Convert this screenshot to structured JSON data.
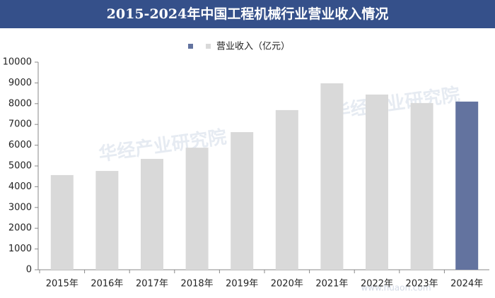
{
  "chart_data": {
    "type": "bar",
    "title": "2015-2024年中国工程机械行业营业收入情况",
    "categories": [
      "2015年",
      "2016年",
      "2017年",
      "2018年",
      "2019年",
      "2020年",
      "2021年",
      "2022年",
      "2023年",
      "2024年"
    ],
    "series": [
      {
        "name": "营业收入（亿元）",
        "values": [
          4560,
          4760,
          5340,
          5880,
          6630,
          7690,
          8980,
          8440,
          8030,
          8100
        ],
        "colors": [
          "#d9d9d9",
          "#d9d9d9",
          "#d9d9d9",
          "#d9d9d9",
          "#d9d9d9",
          "#d9d9d9",
          "#d9d9d9",
          "#d9d9d9",
          "#d9d9d9",
          "#63739f"
        ]
      }
    ],
    "ylim": [
      0,
      10000
    ],
    "yticks": [
      0,
      1000,
      2000,
      3000,
      4000,
      5000,
      6000,
      7000,
      8000,
      9000,
      10000
    ],
    "watermark": "华经产业研究院",
    "source": "www.huaon.com"
  }
}
